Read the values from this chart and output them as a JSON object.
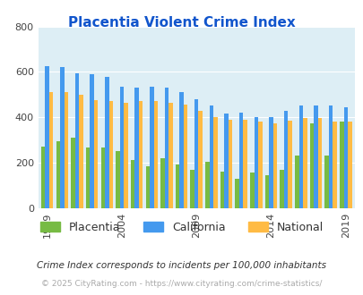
{
  "title": "Placentia Violent Crime Index",
  "title_color": "#1155cc",
  "subtitle": "Crime Index corresponds to incidents per 100,000 inhabitants",
  "footer": "© 2025 CityRating.com - https://www.cityrating.com/crime-statistics/",
  "years": [
    1999,
    2000,
    2001,
    2002,
    2003,
    2004,
    2005,
    2006,
    2007,
    2008,
    2009,
    2010,
    2011,
    2012,
    2013,
    2014,
    2015,
    2016,
    2017,
    2018,
    2019
  ],
  "placentia": [
    270,
    295,
    310,
    265,
    265,
    250,
    210,
    185,
    220,
    190,
    170,
    205,
    160,
    130,
    155,
    145,
    170,
    230,
    375,
    230,
    380
  ],
  "california": [
    625,
    620,
    595,
    590,
    580,
    535,
    530,
    535,
    530,
    510,
    480,
    450,
    415,
    420,
    400,
    400,
    430,
    450,
    450,
    450,
    445
  ],
  "national": [
    510,
    510,
    500,
    475,
    470,
    465,
    470,
    470,
    465,
    455,
    430,
    400,
    390,
    390,
    380,
    375,
    385,
    395,
    395,
    380,
    380
  ],
  "placentia_color": "#77bb44",
  "california_color": "#4499ee",
  "national_color": "#ffbb44",
  "background_color": "#ddeef5",
  "ylim": [
    0,
    800
  ],
  "yticks": [
    0,
    200,
    400,
    600,
    800
  ],
  "bar_width": 0.27,
  "legend_labels": [
    "Placentia",
    "California",
    "National"
  ],
  "xtick_years": [
    1999,
    2004,
    2009,
    2014,
    2019
  ]
}
